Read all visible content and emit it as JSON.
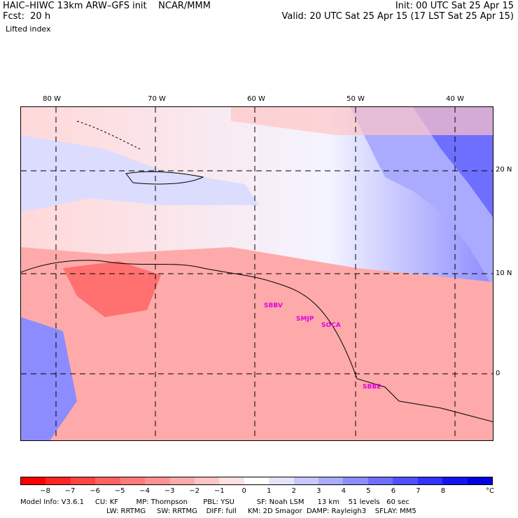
{
  "header": {
    "model": "HAIC–HIWC 13km ARW–GFS init    NCAR/MMM",
    "fcst": "Fcst:  20 h",
    "init": "Init: 00 UTC Sat 25 Apr 15",
    "valid": "Valid: 20 UTC Sat 25 Apr 15 (17 LST Sat 25 Apr 15)",
    "field": "Lifted index"
  },
  "map": {
    "lon_labels": [
      "80 W",
      "70 W",
      "60 W",
      "50 W",
      "40 W"
    ],
    "lat_labels": [
      "20 N",
      "10 N",
      "0"
    ],
    "stations": [
      "SBBV",
      "SMJP",
      "SOCA",
      "SBBE"
    ]
  },
  "colorbar": {
    "unit": "°C",
    "ticks": [
      "−8",
      "−7",
      "−6",
      "−5",
      "−4",
      "−3",
      "−2",
      "−1",
      "0",
      "1",
      "2",
      "3",
      "4",
      "5",
      "6",
      "7",
      "8"
    ],
    "colors": [
      "#ff0000",
      "#ff2424",
      "#ff4444",
      "#ff6060",
      "#ff7a7a",
      "#ff9292",
      "#ffaaaa",
      "#ffc4c4",
      "#ffe0e0",
      "#ffffff",
      "#e4e4ff",
      "#c8c8ff",
      "#aaaaff",
      "#8c8cff",
      "#6e6eff",
      "#5050ff",
      "#3232ff",
      "#1414f0",
      "#0000e0"
    ]
  },
  "footer": {
    "line1": "Model Info: V3.6.1     CU: KF        MP: Thompson       PBL: YSU          SF: Noah LSM      13 km    51 levels   60 sec",
    "line2": "LW: RRTMG     SW: RRTMG    DIFF: full     KM: 2D Smagor  DAMP: Rayleigh3    SFLAY: MM5"
  }
}
